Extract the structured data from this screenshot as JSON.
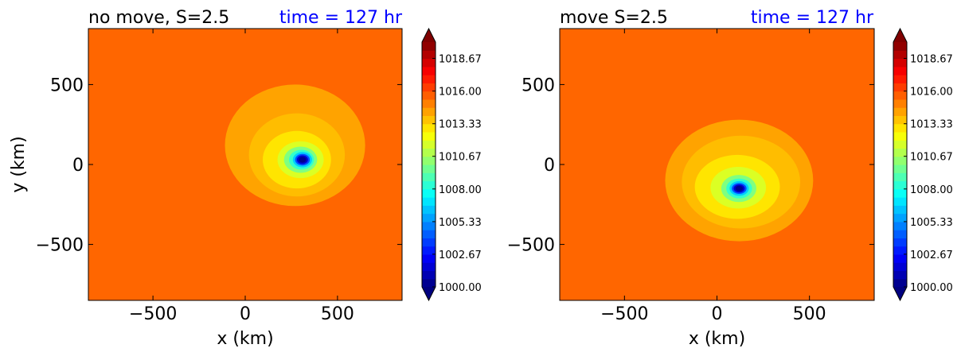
{
  "chart_data": [
    {
      "type": "heatmap",
      "title": "no move, S=2.5",
      "time_label": "time = 127 hr",
      "xlabel": "x (km)",
      "ylabel": "y (km)",
      "xlim": [
        -850,
        850
      ],
      "ylim": [
        -850,
        850
      ],
      "xticks": [
        -500,
        0,
        500
      ],
      "yticks": [
        -500,
        0,
        500
      ],
      "xtick_labels": [
        "−500",
        "0",
        "500"
      ],
      "ytick_labels": [
        "−500",
        "0",
        "500"
      ],
      "grid": false,
      "colormap": "jet",
      "colorbar": {
        "vmin": 1000,
        "vmax": 1020,
        "extend": "both",
        "levels": 30,
        "ticks": [
          1000.0,
          1002.67,
          1005.33,
          1008.0,
          1010.67,
          1013.33,
          1016.0,
          1018.67
        ],
        "tick_labels": [
          "1000.00",
          "1002.67",
          "1005.33",
          "1008.00",
          "1010.67",
          "1013.33",
          "1016.00",
          "1018.67"
        ]
      },
      "background_value": 1015.5,
      "storm_center_km": [
        300,
        30
      ],
      "rings": [
        {
          "value": 1014.3,
          "rx_km": 380,
          "ry_km": 380,
          "cx_km": 270,
          "cy_km": 120
        },
        {
          "value": 1013.8,
          "rx_km": 260,
          "ry_km": 260,
          "cx_km": 280,
          "cy_km": 60
        },
        {
          "value": 1013.0,
          "rx_km": 185,
          "ry_km": 180,
          "cx_km": 280,
          "cy_km": 30
        },
        {
          "value": 1011.8,
          "rx_km": 125,
          "ry_km": 115,
          "cx_km": 300,
          "cy_km": 30
        },
        {
          "value": 1010.0,
          "rx_km": 90,
          "ry_km": 82,
          "cx_km": 300,
          "cy_km": 30
        },
        {
          "value": 1008.5,
          "rx_km": 68,
          "ry_km": 62,
          "cx_km": 305,
          "cy_km": 30
        },
        {
          "value": 1006.5,
          "rx_km": 52,
          "ry_km": 48,
          "cx_km": 310,
          "cy_km": 30
        },
        {
          "value": 1004.0,
          "rx_km": 40,
          "ry_km": 36,
          "cx_km": 310,
          "cy_km": 30
        },
        {
          "value": 1001.5,
          "rx_km": 30,
          "ry_km": 27,
          "cx_km": 310,
          "cy_km": 30
        },
        {
          "value": 1000.3,
          "rx_km": 20,
          "ry_km": 18,
          "cx_km": 310,
          "cy_km": 30
        }
      ]
    },
    {
      "type": "heatmap",
      "title": "move S=2.5",
      "time_label": "time = 127 hr",
      "xlabel": "x (km)",
      "ylabel": "",
      "xlim": [
        -850,
        850
      ],
      "ylim": [
        -850,
        850
      ],
      "xticks": [
        -500,
        0,
        500
      ],
      "yticks": [
        -500,
        0,
        500
      ],
      "xtick_labels": [
        "−500",
        "0",
        "500"
      ],
      "ytick_labels": [
        "−500",
        "0",
        "500"
      ],
      "grid": false,
      "colormap": "jet",
      "colorbar": {
        "vmin": 1000,
        "vmax": 1020,
        "extend": "both",
        "levels": 30,
        "ticks": [
          1000.0,
          1002.67,
          1005.33,
          1008.0,
          1010.67,
          1013.33,
          1016.0,
          1018.67
        ],
        "tick_labels": [
          "1000.00",
          "1002.67",
          "1005.33",
          "1008.00",
          "1010.67",
          "1013.33",
          "1016.00",
          "1018.67"
        ]
      },
      "background_value": 1015.5,
      "storm_center_km": [
        120,
        -150
      ],
      "rings": [
        {
          "value": 1014.3,
          "rx_km": 400,
          "ry_km": 380,
          "cx_km": 120,
          "cy_km": -100
        },
        {
          "value": 1013.8,
          "rx_km": 320,
          "ry_km": 290,
          "cx_km": 130,
          "cy_km": -110
        },
        {
          "value": 1013.0,
          "rx_km": 230,
          "ry_km": 200,
          "cx_km": 110,
          "cy_km": -140
        },
        {
          "value": 1011.8,
          "rx_km": 150,
          "ry_km": 130,
          "cx_km": 115,
          "cy_km": -145
        },
        {
          "value": 1010.0,
          "rx_km": 95,
          "ry_km": 85,
          "cx_km": 118,
          "cy_km": -150
        },
        {
          "value": 1008.5,
          "rx_km": 70,
          "ry_km": 62,
          "cx_km": 120,
          "cy_km": -150
        },
        {
          "value": 1006.5,
          "rx_km": 52,
          "ry_km": 46,
          "cx_km": 120,
          "cy_km": -150
        },
        {
          "value": 1004.0,
          "rx_km": 40,
          "ry_km": 34,
          "cx_km": 120,
          "cy_km": -150
        },
        {
          "value": 1001.5,
          "rx_km": 30,
          "ry_km": 25,
          "cx_km": 120,
          "cy_km": -150
        },
        {
          "value": 1000.3,
          "rx_km": 20,
          "ry_km": 17,
          "cx_km": 120,
          "cy_km": -150
        }
      ]
    }
  ],
  "colors": {
    "time_label": "#0000ff",
    "text": "#000000"
  }
}
